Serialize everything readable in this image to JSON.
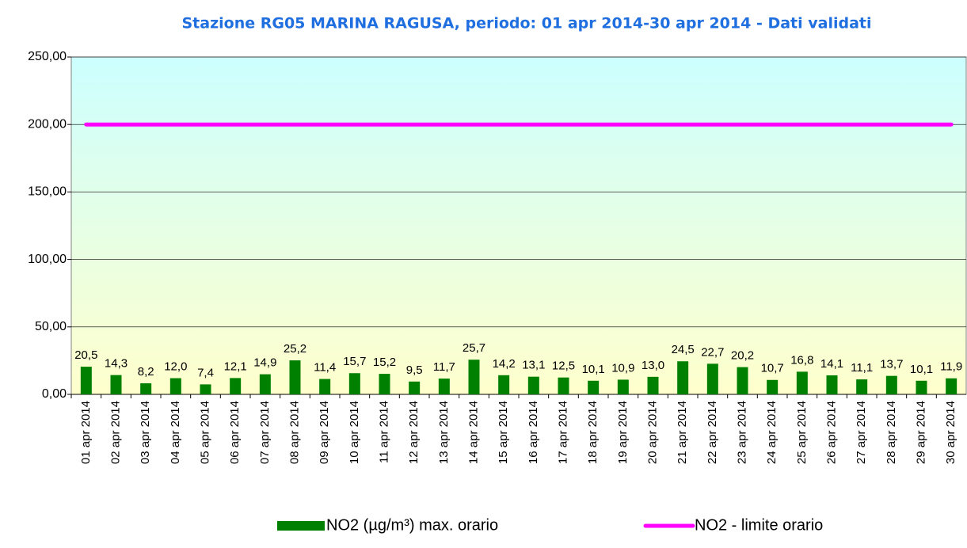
{
  "chart_data": {
    "type": "bar",
    "title": "Stazione RG05 MARINA RAGUSA, periodo: 01 apr 2014-30 apr 2014 - Dati validati",
    "categories": [
      "01 apr 2014",
      "02 apr 2014",
      "03 apr 2014",
      "04 apr 2014",
      "05 apr 2014",
      "06 apr 2014",
      "07 apr 2014",
      "08 apr 2014",
      "09 apr 2014",
      "10 apr 2014",
      "11 apr 2014",
      "12 apr 2014",
      "13 apr 2014",
      "14 apr 2014",
      "15 apr 2014",
      "16 apr 2014",
      "17 apr 2014",
      "18 apr 2014",
      "19 apr 2014",
      "20 apr 2014",
      "21 apr 2014",
      "22 apr 2014",
      "23 apr 2014",
      "24 apr 2014",
      "25 apr 2014",
      "26 apr 2014",
      "27 apr 2014",
      "28 apr 2014",
      "29 apr 2014",
      "30 apr 2014"
    ],
    "series": [
      {
        "name": "NO2 (µg/m³) max. orario",
        "color": "#008000",
        "type": "bar",
        "values": [
          20.5,
          14.3,
          8.2,
          12.0,
          7.4,
          12.1,
          14.9,
          25.2,
          11.4,
          15.7,
          15.2,
          9.5,
          11.7,
          25.7,
          14.2,
          13.1,
          12.5,
          10.1,
          10.9,
          13.0,
          24.5,
          22.7,
          20.2,
          10.7,
          16.8,
          14.1,
          11.1,
          13.7,
          10.1,
          11.9
        ],
        "value_labels": [
          "20,5",
          "14,3",
          "8,2",
          "12,0",
          "7,4",
          "12,1",
          "14,9",
          "25,2",
          "11,4",
          "15,7",
          "15,2",
          "9,5",
          "11,7",
          "25,7",
          "14,2",
          "13,1",
          "12,5",
          "10,1",
          "10,9",
          "13,0",
          "24,5",
          "22,7",
          "20,2",
          "10,7",
          "16,8",
          "14,1",
          "11,1",
          "13,7",
          "10,1",
          "11,9"
        ]
      },
      {
        "name": "NO2 - limite orario",
        "color": "#ff00ff",
        "type": "line",
        "values": [
          200,
          200,
          200,
          200,
          200,
          200,
          200,
          200,
          200,
          200,
          200,
          200,
          200,
          200,
          200,
          200,
          200,
          200,
          200,
          200,
          200,
          200,
          200,
          200,
          200,
          200,
          200,
          200,
          200,
          200
        ]
      }
    ],
    "ylim": [
      0,
      250
    ],
    "yticks": [
      {
        "value": 0,
        "label": "0,00"
      },
      {
        "value": 50,
        "label": "50,00"
      },
      {
        "value": 100,
        "label": "100,00"
      },
      {
        "value": 150,
        "label": "150,00"
      },
      {
        "value": 200,
        "label": "200,00"
      },
      {
        "value": 250,
        "label": "250,00"
      }
    ],
    "grid": true
  }
}
